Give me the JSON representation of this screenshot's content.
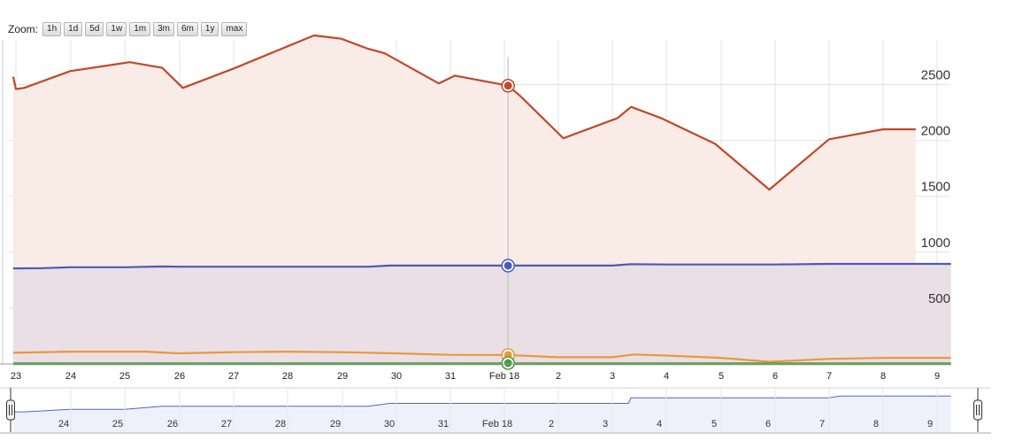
{
  "zoom": {
    "label": "Zoom:",
    "buttons": [
      "1h",
      "1d",
      "5d",
      "1w",
      "1m",
      "3m",
      "6m",
      "1y",
      "max"
    ]
  },
  "colors": {
    "series_top": "#c0482a",
    "series_top_fill": "#f9ebe6",
    "series_mid": "#4a5ab8",
    "series_mid_fill": "#ebdfe6",
    "series_low": "#e8993a",
    "series_base": "#4a9a3a",
    "navigator": "#5566bb",
    "navigator_fill": "#eef1fa",
    "grid": "#e3e3e3"
  },
  "chart_data": {
    "type": "area",
    "x_ticks": [
      "23",
      "24",
      "25",
      "26",
      "27",
      "28",
      "29",
      "30",
      "31",
      "Feb 18",
      "2",
      "3",
      "4",
      "5",
      "6",
      "7",
      "8",
      "9"
    ],
    "y_ticks": [
      "500",
      "1000",
      "1500",
      "2000",
      "2500"
    ],
    "ylim": [
      0,
      2900
    ],
    "xlim": [
      22.95,
      40.25
    ],
    "grid": true,
    "crosshair_x": 32.08,
    "series": [
      {
        "color_key": "series_top",
        "points": [
          [
            22.95,
            2570
          ],
          [
            23.0,
            2460
          ],
          [
            23.15,
            2470
          ],
          [
            24.0,
            2620
          ],
          [
            25.1,
            2700
          ],
          [
            25.7,
            2650
          ],
          [
            26.08,
            2470
          ],
          [
            27.0,
            2640
          ],
          [
            28.5,
            2940
          ],
          [
            29.0,
            2910
          ],
          [
            29.5,
            2820
          ],
          [
            29.8,
            2780
          ],
          [
            30.8,
            2510
          ],
          [
            31.1,
            2580
          ],
          [
            32.08,
            2490
          ],
          [
            32.3,
            2400
          ],
          [
            33.1,
            2020
          ],
          [
            34.1,
            2200
          ],
          [
            34.35,
            2300
          ],
          [
            34.9,
            2200
          ],
          [
            35.9,
            1970
          ],
          [
            36.9,
            1560
          ],
          [
            38.0,
            2010
          ],
          [
            39.0,
            2100
          ],
          [
            39.6,
            2100
          ]
        ]
      },
      {
        "color_key": "series_mid",
        "points": [
          [
            22.95,
            855
          ],
          [
            23.5,
            857
          ],
          [
            24.0,
            865
          ],
          [
            25.0,
            865
          ],
          [
            25.7,
            872
          ],
          [
            26.0,
            870
          ],
          [
            28.0,
            870
          ],
          [
            29.5,
            870
          ],
          [
            29.9,
            880
          ],
          [
            31.0,
            880
          ],
          [
            32.08,
            880
          ],
          [
            33.0,
            880
          ],
          [
            34.0,
            880
          ],
          [
            34.35,
            893
          ],
          [
            35.0,
            890
          ],
          [
            36.0,
            890
          ],
          [
            37.0,
            890
          ],
          [
            38.0,
            895
          ],
          [
            40.25,
            895
          ]
        ]
      },
      {
        "color_key": "series_low",
        "points": [
          [
            22.95,
            100
          ],
          [
            24.0,
            110
          ],
          [
            25.4,
            110
          ],
          [
            26.0,
            95
          ],
          [
            27.0,
            105
          ],
          [
            28.0,
            110
          ],
          [
            29.0,
            105
          ],
          [
            30.0,
            95
          ],
          [
            31.0,
            82
          ],
          [
            32.08,
            80
          ],
          [
            33.0,
            60
          ],
          [
            34.0,
            60
          ],
          [
            34.4,
            85
          ],
          [
            35.0,
            75
          ],
          [
            36.0,
            55
          ],
          [
            36.9,
            20
          ],
          [
            38.0,
            45
          ],
          [
            39.0,
            55
          ],
          [
            40.25,
            55
          ]
        ]
      },
      {
        "color_key": "series_base",
        "points": [
          [
            22.95,
            2
          ],
          [
            40.25,
            2
          ]
        ]
      }
    ]
  },
  "navigator": {
    "ticks": [
      "24",
      "25",
      "26",
      "27",
      "28",
      "29",
      "30",
      "31",
      "Feb 18",
      "2",
      "3",
      "4",
      "5",
      "6",
      "7",
      "8",
      "9"
    ],
    "points": [
      [
        22.95,
        855
      ],
      [
        23.15,
        855
      ],
      [
        24.0,
        862
      ],
      [
        25.0,
        862
      ],
      [
        25.7,
        870
      ],
      [
        29.5,
        870
      ],
      [
        29.9,
        878
      ],
      [
        34.3,
        878
      ],
      [
        34.35,
        893
      ],
      [
        38.0,
        893
      ],
      [
        38.2,
        898
      ],
      [
        40.25,
        898
      ]
    ],
    "ylim": [
      800,
      920
    ]
  }
}
